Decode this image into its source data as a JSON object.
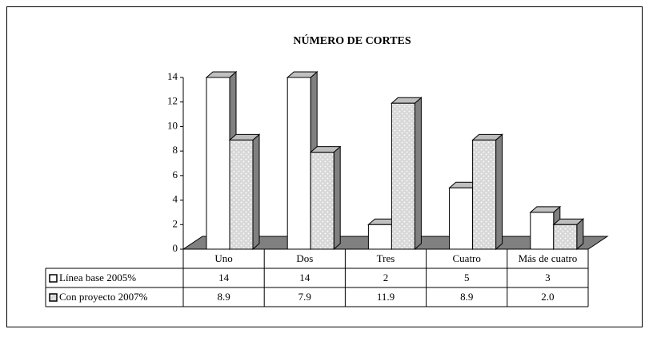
{
  "chart_data": {
    "type": "bar3d",
    "title": "NÚMERO DE CORTES",
    "categories": [
      "Uno",
      "Dos",
      "Tres",
      "Cuatro",
      "Más de cuatro"
    ],
    "series": [
      {
        "name": "Línea base 2005%",
        "color": "#ffffff",
        "values": [
          14,
          14,
          2,
          5,
          3
        ]
      },
      {
        "name": "Con proyecto 2007%",
        "color": "#dcdcdc",
        "values": [
          8.9,
          7.9,
          11.9,
          8.9,
          2.0
        ],
        "value_labels": [
          "8.9",
          "7.9",
          "11.9",
          "8.9",
          "2.0"
        ]
      }
    ],
    "ylim": [
      0,
      14
    ],
    "yticks": [
      0,
      2,
      4,
      6,
      8,
      10,
      12,
      14
    ],
    "data_table": true
  }
}
